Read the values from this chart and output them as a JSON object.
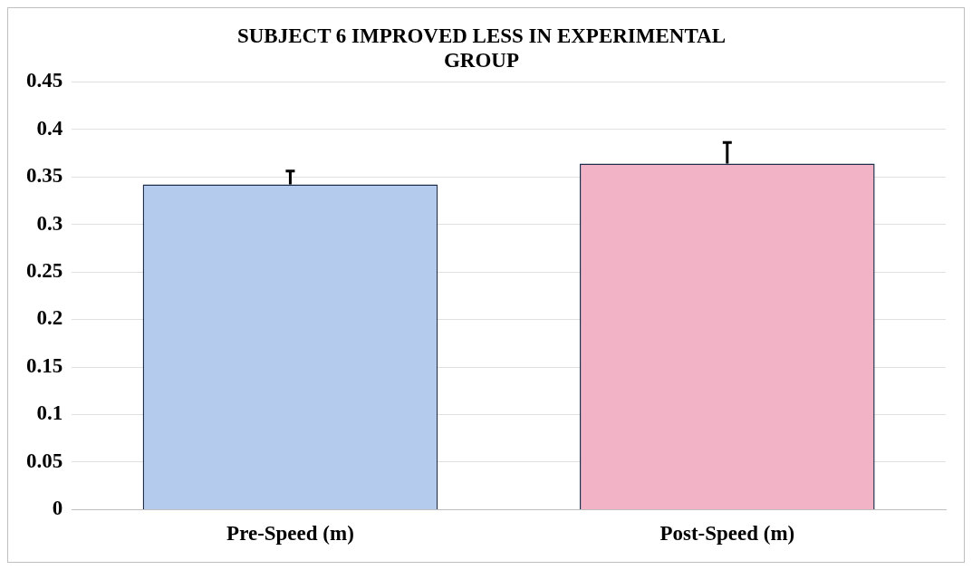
{
  "chart_data": {
    "type": "bar",
    "title": "SUBJECT 6 IMPROVED LESS IN EXPERIMENTAL GROUP",
    "categories": [
      "Pre-Speed (m)",
      "Post-Speed (m)"
    ],
    "values": [
      0.342,
      0.364
    ],
    "colors": [
      "#b4cbee",
      "#f2b3c6"
    ],
    "errors": [
      [
        0.342,
        0.356
      ],
      [
        0.364,
        0.386
      ]
    ],
    "ylim": [
      0,
      0.45
    ],
    "yticks": [
      0,
      0.05,
      0.1,
      0.15,
      0.2,
      0.25,
      0.3,
      0.35,
      0.4,
      0.45
    ],
    "grid": "y",
    "legend": false
  }
}
